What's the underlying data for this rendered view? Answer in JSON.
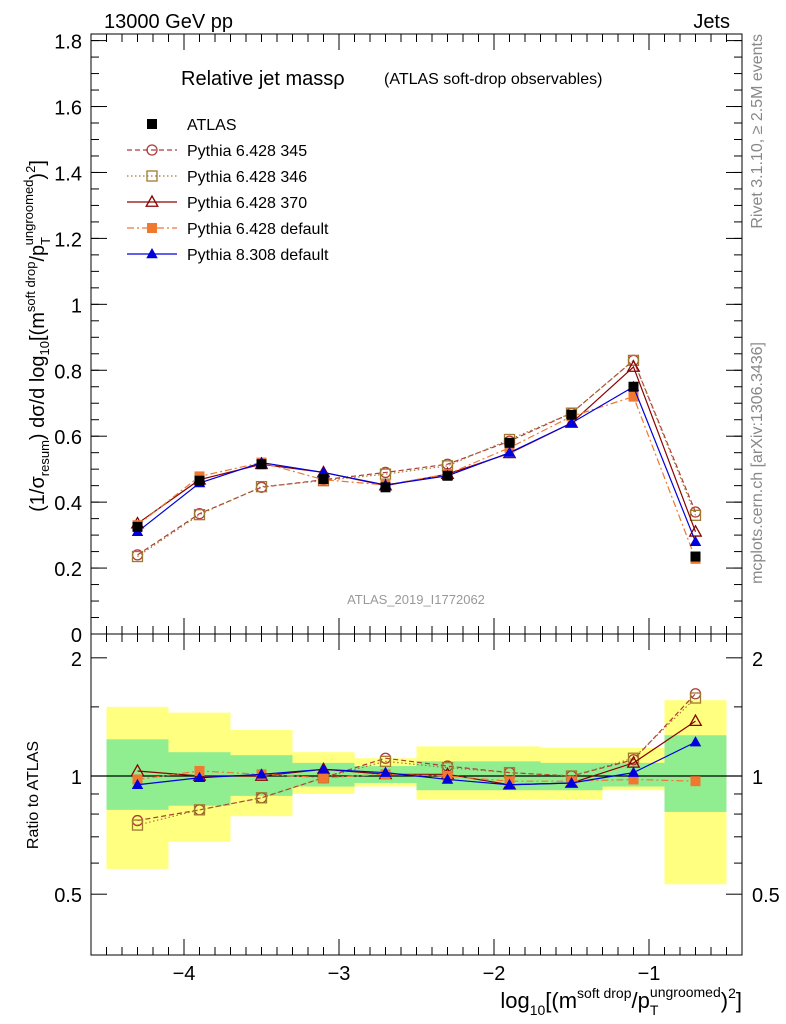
{
  "header": {
    "left": "13000 GeV pp",
    "right": "Jets"
  },
  "side_labels": {
    "rivet": "Rivet 3.1.10, ≥ 2.5M events",
    "mcplots": "mcplots.cern.ch [arXiv:1306.3436]"
  },
  "chart_data": [
    {
      "type": "line",
      "panel": "main",
      "title": "Relative jet massρ",
      "subtitle": "(ATLAS soft-drop observables)",
      "watermark": "ATLAS_2019_I1772062",
      "ylabel": "(1/σresum) dσ/d log10[(msoft drop/pTungroomed)2]",
      "ylim": [
        0,
        1.82
      ],
      "yticks": [
        0,
        0.2,
        0.4,
        0.6,
        0.8,
        1,
        1.2,
        1.4,
        1.6,
        1.8
      ],
      "ytick_labels": [
        "0",
        "0.2",
        "0.4",
        "0.6",
        "0.8",
        "1",
        "1.2",
        "1.4",
        "1.6",
        "1.8"
      ],
      "xlim": [
        -4.6,
        -0.4
      ],
      "x": [
        -4.3,
        -3.9,
        -3.5,
        -3.1,
        -2.7,
        -2.3,
        -1.9,
        -1.5,
        -1.1,
        -0.7
      ],
      "legend_placement": "top-left",
      "series": [
        {
          "name": "ATLAS",
          "color": "#000000",
          "marker": "filled-square",
          "line": "none",
          "values": [
            0.325,
            0.465,
            0.515,
            0.47,
            0.445,
            0.48,
            0.58,
            0.665,
            0.75,
            0.235
          ]
        },
        {
          "name": "Pythia 6.428 345",
          "color": "#b03a3a",
          "marker": "open-circle",
          "line": "dashed",
          "values": [
            0.24,
            0.365,
            0.445,
            0.468,
            0.49,
            0.515,
            0.585,
            0.67,
            0.83,
            0.37
          ]
        },
        {
          "name": "Pythia 6.428 346",
          "color": "#a07a30",
          "marker": "open-square",
          "line": "dotted",
          "values": [
            0.235,
            0.362,
            0.447,
            0.465,
            0.485,
            0.51,
            0.59,
            0.67,
            0.83,
            0.36
          ]
        },
        {
          "name": "Pythia 6.428 370",
          "color": "#8b0000",
          "marker": "open-triangle",
          "line": "solid",
          "values": [
            0.335,
            0.468,
            0.515,
            0.49,
            0.45,
            0.485,
            0.548,
            0.64,
            0.81,
            0.31
          ]
        },
        {
          "name": "Pythia 6.428 default",
          "color": "#f07830",
          "marker": "filled-square",
          "line": "dashdot",
          "values": [
            0.33,
            0.478,
            0.52,
            0.468,
            0.452,
            0.485,
            0.565,
            0.66,
            0.72,
            0.228
          ]
        },
        {
          "name": "Pythia 8.308 default",
          "color": "#0000dd",
          "marker": "filled-triangle",
          "line": "solid",
          "values": [
            0.31,
            0.458,
            0.52,
            0.49,
            0.452,
            0.48,
            0.55,
            0.64,
            0.75,
            0.28
          ]
        }
      ]
    },
    {
      "type": "line",
      "panel": "ratio",
      "ylabel": "Ratio to ATLAS",
      "xlabel": "log10[(msoft drop/pTungroomed)2]",
      "ylim": [
        0.35,
        2.3
      ],
      "yticks": [
        0.5,
        1,
        2
      ],
      "ytick_labels": [
        "0.5",
        "1",
        "2"
      ],
      "xticks": [
        -4,
        -3,
        -2,
        -1
      ],
      "xtick_labels": [
        "−4",
        "−3",
        "−2",
        "−1"
      ],
      "x": [
        -4.3,
        -3.9,
        -3.5,
        -3.1,
        -2.7,
        -2.3,
        -1.9,
        -1.5,
        -1.1,
        -0.7
      ],
      "bin_edges": [
        -4.5,
        -4.1,
        -3.7,
        -3.3,
        -2.9,
        -2.5,
        -2.1,
        -1.7,
        -1.3,
        -0.9,
        -0.5
      ],
      "band_colors": {
        "outer": "#ffff80",
        "inner": "#90ee90"
      },
      "outer_band": [
        [
          0.58,
          1.5
        ],
        [
          0.68,
          1.45
        ],
        [
          0.79,
          1.31
        ],
        [
          0.9,
          1.15
        ],
        [
          0.94,
          1.11
        ],
        [
          0.87,
          1.19
        ],
        [
          0.87,
          1.19
        ],
        [
          0.87,
          1.18
        ],
        [
          0.92,
          1.18
        ],
        [
          0.53,
          1.56
        ]
      ],
      "inner_band": [
        [
          0.82,
          1.24
        ],
        [
          0.84,
          1.15
        ],
        [
          0.89,
          1.13
        ],
        [
          0.94,
          1.08
        ],
        [
          0.96,
          1.06
        ],
        [
          0.92,
          1.09
        ],
        [
          0.92,
          1.09
        ],
        [
          0.92,
          1.08
        ],
        [
          0.94,
          1.08
        ],
        [
          0.81,
          1.27
        ]
      ],
      "series": [
        {
          "name": "Pythia 6.428 345",
          "values": [
            0.77,
            0.82,
            0.88,
            0.99,
            1.11,
            1.06,
            1.02,
            1.0,
            1.1,
            1.62
          ]
        },
        {
          "name": "Pythia 6.428 346",
          "values": [
            0.75,
            0.82,
            0.88,
            0.99,
            1.09,
            1.05,
            1.02,
            1.0,
            1.11,
            1.58
          ]
        },
        {
          "name": "Pythia 6.428 370",
          "values": [
            1.03,
            1.0,
            1.0,
            1.04,
            1.01,
            1.01,
            0.95,
            0.96,
            1.08,
            1.38
          ]
        },
        {
          "name": "Pythia 6.428 default",
          "values": [
            0.98,
            1.03,
            1.01,
            0.99,
            1.01,
            1.0,
            0.97,
            0.97,
            0.98,
            0.97
          ]
        },
        {
          "name": "Pythia 8.308 default",
          "values": [
            0.95,
            0.99,
            1.01,
            1.04,
            1.02,
            0.98,
            0.95,
            0.96,
            1.02,
            1.22
          ]
        }
      ]
    }
  ]
}
